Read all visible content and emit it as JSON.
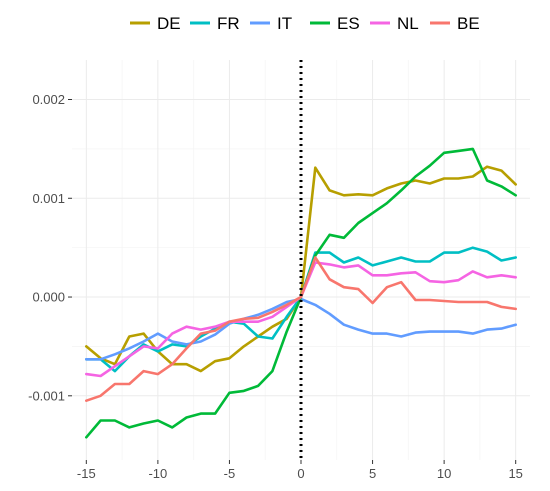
{
  "chart_data": {
    "type": "line",
    "title": "",
    "xlabel": "",
    "ylabel": "",
    "x": [
      -15,
      -14,
      -13,
      -12,
      -11,
      -10,
      -9,
      -8,
      -7,
      -6,
      -5,
      -4,
      -3,
      -2,
      -1,
      0,
      1,
      2,
      3,
      4,
      5,
      6,
      7,
      8,
      9,
      10,
      11,
      12,
      13,
      14,
      15
    ],
    "xlim": [
      -16,
      16
    ],
    "ylim": [
      -0.00165,
      0.0024
    ],
    "x_ticks": [
      -15,
      -10,
      -5,
      0,
      5,
      10,
      15
    ],
    "x_tick_labels": [
      "-15",
      "-10",
      "-5",
      "0",
      "5",
      "10",
      "15"
    ],
    "y_ticks": [
      -0.001,
      0.0,
      0.001,
      0.002
    ],
    "y_tick_labels": [
      "-0.001",
      "0.000",
      "0.001",
      "0.002"
    ],
    "vline": {
      "x": 0,
      "style": "dotted"
    },
    "grid": true,
    "legend_position": "top",
    "series": [
      {
        "name": "DE",
        "color": "#b79f00",
        "values": [
          -0.0005,
          -0.00062,
          -0.00068,
          -0.0004,
          -0.00037,
          -0.00055,
          -0.00068,
          -0.00068,
          -0.00075,
          -0.00065,
          -0.00062,
          -0.0005,
          -0.0004,
          -0.0003,
          -0.00022,
          0.0,
          0.00131,
          0.00108,
          0.00103,
          0.00104,
          0.00103,
          0.0011,
          0.00115,
          0.00118,
          0.00115,
          0.0012,
          0.0012,
          0.00122,
          0.00132,
          0.00128,
          0.00114
        ]
      },
      {
        "name": "FR",
        "color": "#00bfc4",
        "values": [
          -0.00063,
          -0.00063,
          -0.00075,
          -0.0006,
          -0.00048,
          -0.00055,
          -0.00048,
          -0.0005,
          -0.0004,
          -0.00032,
          -0.00025,
          -0.00027,
          -0.0004,
          -0.00042,
          -0.0002,
          0.0,
          0.00045,
          0.00045,
          0.00035,
          0.0004,
          0.00032,
          0.00036,
          0.0004,
          0.00036,
          0.00036,
          0.00045,
          0.00045,
          0.0005,
          0.00046,
          0.00037,
          0.0004
        ]
      },
      {
        "name": "IT",
        "color": "#619cff",
        "values": [
          -0.00063,
          -0.00063,
          -0.00058,
          -0.00052,
          -0.00045,
          -0.00037,
          -0.00045,
          -0.00048,
          -0.00045,
          -0.00038,
          -0.00027,
          -0.00022,
          -0.00018,
          -0.00012,
          -5e-05,
          -2e-05,
          -8e-05,
          -0.00017,
          -0.00028,
          -0.00033,
          -0.00037,
          -0.00037,
          -0.0004,
          -0.00036,
          -0.00035,
          -0.00035,
          -0.00035,
          -0.00037,
          -0.00033,
          -0.00032,
          -0.00028
        ]
      },
      {
        "name": "ES",
        "color": "#00ba38",
        "values": [
          -0.00142,
          -0.00125,
          -0.00125,
          -0.00132,
          -0.00128,
          -0.00125,
          -0.00132,
          -0.00122,
          -0.00118,
          -0.00118,
          -0.00097,
          -0.00095,
          -0.0009,
          -0.00075,
          -0.00035,
          0.0,
          0.00042,
          0.00063,
          0.0006,
          0.00075,
          0.00085,
          0.00095,
          0.00108,
          0.00122,
          0.00133,
          0.00146,
          0.00148,
          0.0015,
          0.00118,
          0.00112,
          0.00103
        ]
      },
      {
        "name": "NL",
        "color": "#f564e3",
        "values": [
          -0.00078,
          -0.0008,
          -0.0007,
          -0.0006,
          -0.0005,
          -0.00052,
          -0.00037,
          -0.0003,
          -0.00033,
          -0.0003,
          -0.00025,
          -0.00025,
          -0.00025,
          -0.0002,
          -0.0001,
          0.0,
          0.00035,
          0.00033,
          0.0003,
          0.00032,
          0.00022,
          0.00022,
          0.00024,
          0.00025,
          0.00016,
          0.00015,
          0.00017,
          0.00026,
          0.0002,
          0.00022,
          0.0002
        ]
      },
      {
        "name": "BE",
        "color": "#f8766d",
        "values": [
          -0.00105,
          -0.001,
          -0.00088,
          -0.00088,
          -0.00075,
          -0.00078,
          -0.00068,
          -0.00052,
          -0.00037,
          -0.00034,
          -0.00025,
          -0.00022,
          -0.00021,
          -0.00015,
          -8e-05,
          0.0,
          0.0004,
          0.00018,
          0.0001,
          8e-05,
          -6e-05,
          0.0001,
          0.00015,
          -3e-05,
          -3e-05,
          -4e-05,
          -5e-05,
          -5e-05,
          -5e-05,
          -0.0001,
          -0.00012
        ]
      }
    ]
  }
}
